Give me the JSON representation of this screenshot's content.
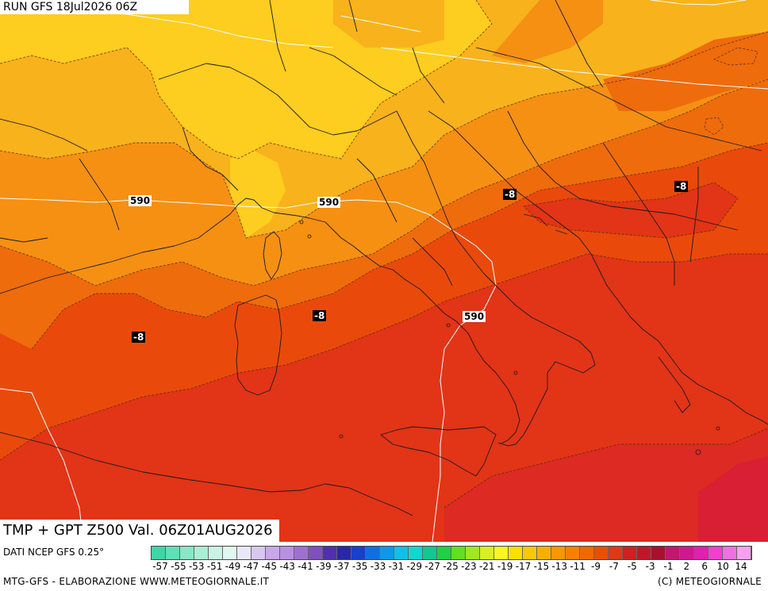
{
  "header": {
    "run_label": "RUN GFS 18Jul2026 06Z"
  },
  "product": {
    "valid_label": "TMP + GPT Z500 Val. 06Z01AUG2026"
  },
  "contour_labels": {
    "geopotential": [
      "590",
      "590",
      "590"
    ],
    "temperature": [
      "-8",
      "-8",
      "-8",
      "-8"
    ]
  },
  "footer": {
    "source": "DATI NCEP GFS 0.25°",
    "left": "MTG-GFS - ELABORAZIONE WWW.METEOGIORNALE.IT",
    "right": "(C) METEOGIORNALE"
  },
  "colorbar": {
    "tick_labels": [
      "-57",
      "-55",
      "-53",
      "-51",
      "-49",
      "-47",
      "-45",
      "-43",
      "-41",
      "-39",
      "-37",
      "-35",
      "-33",
      "-31",
      "-29",
      "-27",
      "-25",
      "-23",
      "-21",
      "-19",
      "-17",
      "-15",
      "-13",
      "-11",
      "-9",
      "-7",
      "-5",
      "-3",
      "-1",
      "2",
      "6",
      "10",
      "14"
    ],
    "colors": [
      "#3fd6a6",
      "#5fe0b6",
      "#86e8c6",
      "#a8efd6",
      "#c8f4e6",
      "#e0f8f0",
      "#e8e8f8",
      "#d8c8f0",
      "#c8a8e8",
      "#b890e0",
      "#a070d0",
      "#8050c0",
      "#5030b0",
      "#2828a8",
      "#1840c8",
      "#1070e0",
      "#1098e8",
      "#10c0e8",
      "#10d8d0",
      "#10c890",
      "#20d040",
      "#60e020",
      "#a0e820",
      "#d8f020",
      "#f8f820",
      "#f8e000",
      "#f8c800",
      "#f8b000",
      "#f89800",
      "#f88000",
      "#f06800",
      "#e85000",
      "#e03818",
      "#d02020",
      "#c01828",
      "#a81030",
      "#c0186c",
      "#d01890",
      "#e020b0",
      "#f040d0",
      "#f070e0",
      "#f8a0f0"
    ]
  },
  "colors": {
    "orange_light": "#f8b21c",
    "orange_yellow": "#fdcd1f",
    "orange_mid": "#f59013",
    "orange_deep": "#ee6c0c",
    "red_orange": "#e94a0b",
    "red": "#e23417",
    "crimson": "#d81f34"
  }
}
